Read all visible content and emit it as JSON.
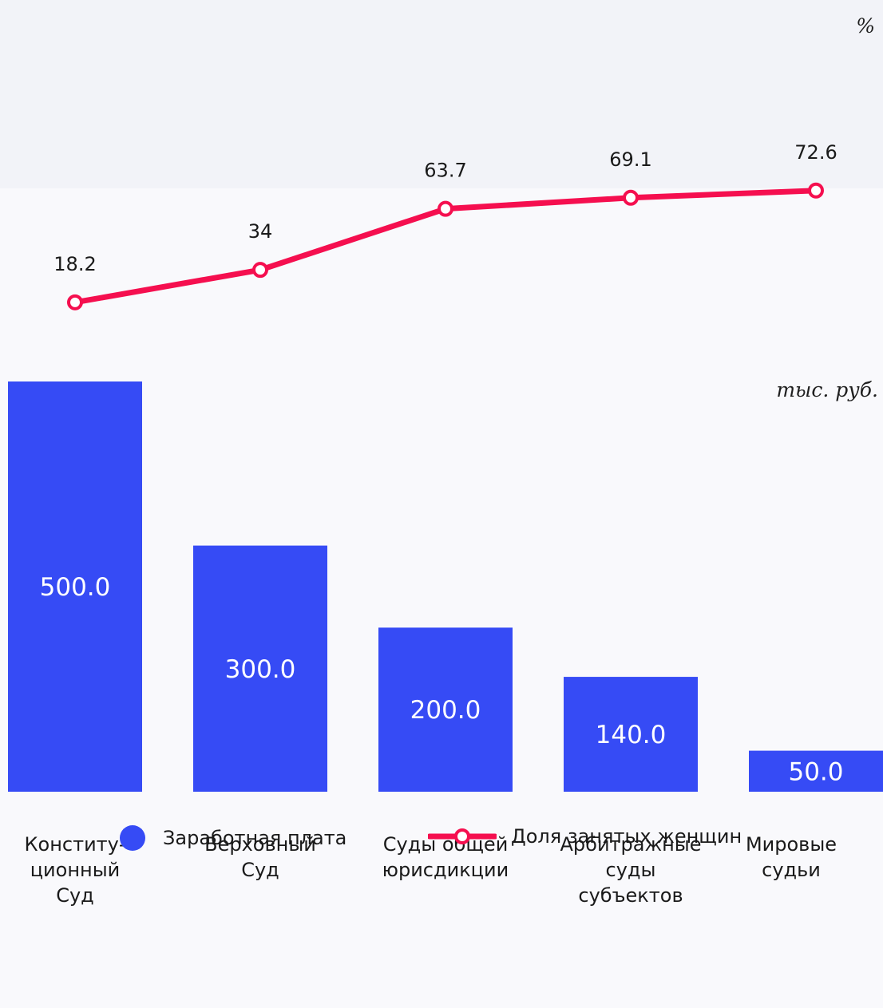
{
  "chart_data": {
    "type": "bar",
    "categories": [
      "Конститу-\nционный\nСуд",
      "Верховный\nСуд",
      "Суды общей\nюрисдикции",
      "Арбитражные\nсуды\nсубъектов",
      "Мировые\nсудьи"
    ],
    "series": [
      {
        "name": "Заработная плата",
        "type": "bar",
        "unit": "тыс. руб.",
        "values": [
          500.0,
          300.0,
          200.0,
          140.0,
          50.0
        ],
        "labels": [
          "500.0",
          "300.0",
          "200.0",
          "140.0",
          "50.0"
        ],
        "color": "#364bf5"
      },
      {
        "name": "Доля занятых женщин",
        "type": "line",
        "unit": "%",
        "values": [
          18.2,
          34,
          63.7,
          69.1,
          72.6
        ],
        "labels": [
          "18.2",
          "34",
          "63.7",
          "69.1",
          "72.6"
        ],
        "color": "#f50f4f"
      }
    ],
    "title": "",
    "xlabel": "",
    "ylabel": "",
    "grid": false,
    "legend_position": "bottom"
  },
  "units": {
    "line": "%",
    "bar": "тыс. руб."
  },
  "legend": {
    "bar_label": "Заработная плата",
    "line_label": "Доля занятых женщин"
  },
  "colors": {
    "bar": "#364bf5",
    "line": "#f50f4f",
    "line_panel_bg": "#f2f3f8",
    "bar_panel_bg": "#f9f9fc"
  }
}
